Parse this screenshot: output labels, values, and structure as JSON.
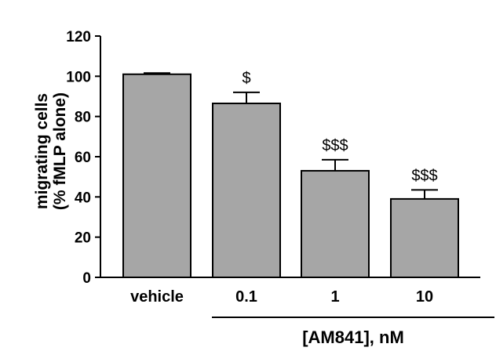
{
  "chart_data": {
    "type": "bar",
    "categories": [
      "vehicle",
      "0.1",
      "1",
      "10"
    ],
    "values": [
      101,
      86.5,
      53,
      39
    ],
    "errors": [
      0.6,
      5.5,
      5.5,
      4.5
    ],
    "annotations": [
      "",
      "$",
      "$$$",
      "$$$"
    ],
    "ylabel_line1": "migrating cells",
    "ylabel_line2": "(% fMLP alone)",
    "xlabel": "[AM841], nM",
    "ylim": [
      0,
      120
    ],
    "yticks": [
      0,
      20,
      40,
      60,
      80,
      100,
      120
    ],
    "bar_color": "#a6a6a6",
    "grid": false
  }
}
